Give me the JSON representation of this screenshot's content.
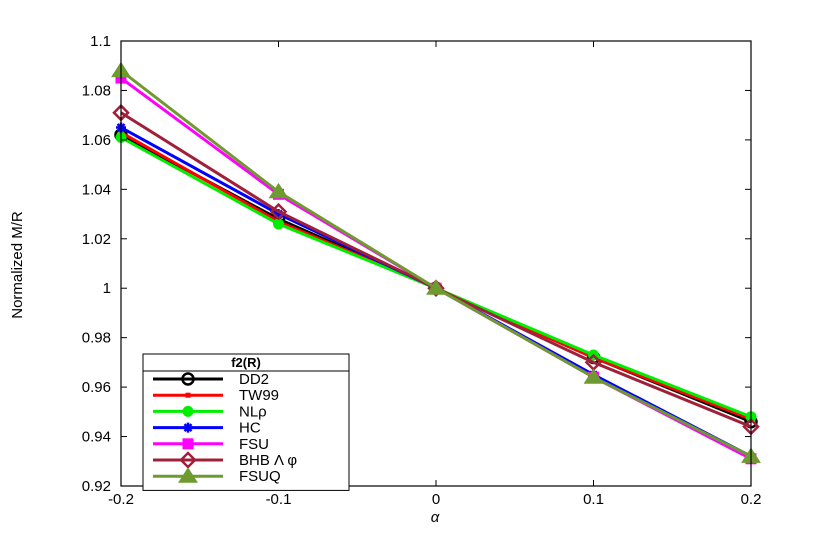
{
  "chart_data": {
    "type": "line",
    "xlabel": "α",
    "ylabel": "Normalized M/R",
    "xlim": [
      -0.2,
      0.2
    ],
    "ylim": [
      0.92,
      1.1
    ],
    "x": [
      -0.2,
      -0.1,
      0,
      0.1,
      0.2
    ],
    "xticks": [
      "-0.2",
      "-0.1",
      "0",
      "0.1",
      "0.2"
    ],
    "yticks": [
      "0.92",
      "0.94",
      "0.96",
      "0.98",
      "1",
      "1.02",
      "1.04",
      "1.06",
      "1.08",
      "1.1"
    ],
    "grid": false,
    "legend": {
      "title": "f2(R)",
      "placement": "bottom-left"
    },
    "series": [
      {
        "name": "DD2",
        "color": "#000000",
        "marker": "circle-open",
        "values": [
          1.062,
          1.028,
          1.0,
          0.972,
          0.946
        ]
      },
      {
        "name": "TW99",
        "color": "#ff0000",
        "marker": "point",
        "values": [
          1.063,
          1.027,
          1.0,
          0.972,
          0.947
        ]
      },
      {
        "name": "NLρ",
        "color": "#00ee00",
        "marker": "circle-filled",
        "values": [
          1.061,
          1.026,
          1.0,
          0.973,
          0.948
        ]
      },
      {
        "name": "HC",
        "color": "#0000ff",
        "marker": "star",
        "values": [
          1.065,
          1.03,
          1.0,
          0.965,
          0.932
        ]
      },
      {
        "name": "FSU",
        "color": "#ff00ff",
        "marker": "square",
        "values": [
          1.085,
          1.038,
          1.0,
          0.964,
          0.931
        ]
      },
      {
        "name": "BHB Λ φ",
        "color": "#a0203a",
        "marker": "diamond-open",
        "values": [
          1.071,
          1.031,
          1.0,
          0.97,
          0.944
        ]
      },
      {
        "name": "FSUQ",
        "color": "#6e9a30",
        "marker": "triangle",
        "values": [
          1.088,
          1.039,
          1.0,
          0.964,
          0.932
        ]
      }
    ]
  }
}
